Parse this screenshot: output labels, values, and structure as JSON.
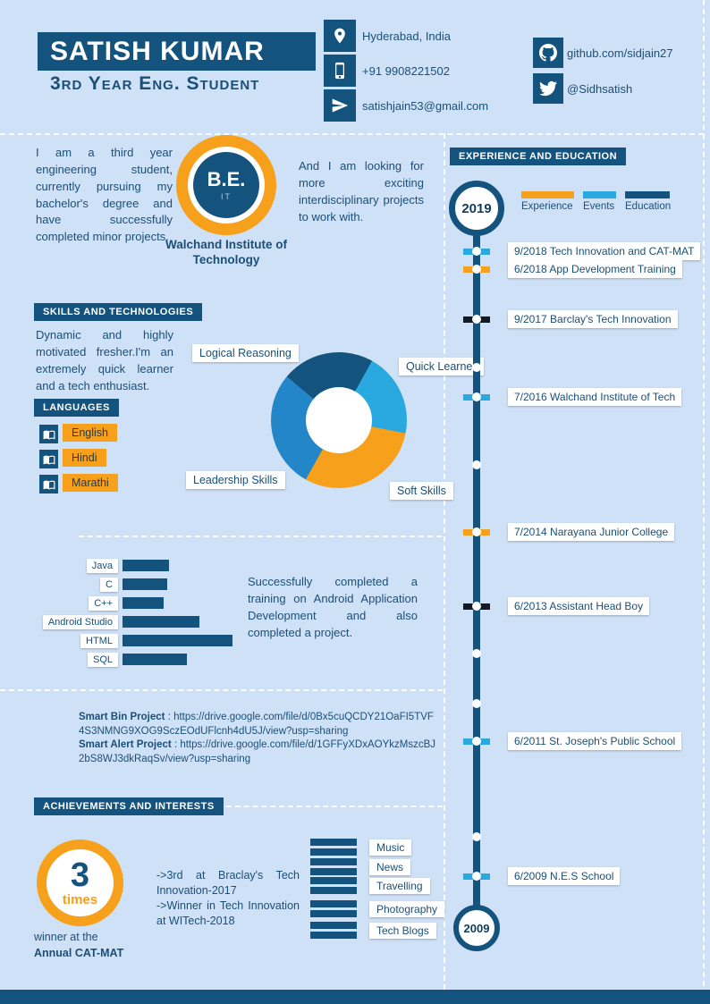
{
  "theme": {
    "background": "#cfe1f6",
    "dark_blue": "#14537d",
    "orange": "#f6a01b",
    "light_blue": "#2aa9e0",
    "near_black": "#101b26",
    "text": "#1b4f76"
  },
  "header": {
    "name": "SATISH KUMAR",
    "subtitle": "3rd Year Eng. Student",
    "contacts": [
      {
        "icon": "location-icon",
        "text": "Hyderabad, India"
      },
      {
        "icon": "phone-icon",
        "text": "+91 9908221502"
      },
      {
        "icon": "send-icon",
        "text": "satishjain53@gmail.com"
      }
    ],
    "socials": [
      {
        "icon": "github-icon",
        "text": "github.com/sidjain27"
      },
      {
        "icon": "twitter-icon",
        "text": "@Sidhsatish"
      }
    ]
  },
  "about": {
    "intro": "I am a third year engineering student, currently pursuing my bachelor's degree and have successfully completed minor projects.",
    "degree": "B.E.",
    "degree_field": "IT",
    "institute": "Walchand Institute of Technology",
    "looking": "And I am looking for more exciting interdisciplinary projects to work with."
  },
  "skills": {
    "title": "SKILLS AND TECHNOLOGIES",
    "blurb": "Dynamic and highly motivated fresher.I'm an extremely quick learner and a tech enthusiast."
  },
  "languages": {
    "title": "LANGUAGES",
    "items": [
      {
        "label": "English"
      },
      {
        "label": "Hindi"
      },
      {
        "label": "Marathi"
      }
    ]
  },
  "chart_data": [
    {
      "type": "pie",
      "labels": [
        "Logical Reasoning",
        "Quick Learner",
        "Soft Skills",
        "Leadership Skills"
      ],
      "values": [
        22,
        20,
        30,
        28
      ],
      "colors": [
        "#14537d",
        "#2aa9e0",
        "#f6a01b",
        "#2386c8"
      ],
      "hole": 0.48,
      "start_angle_deg": -50,
      "legend_position": "around"
    },
    {
      "type": "bar",
      "orientation": "horizontal",
      "categories": [
        "Java",
        "C",
        "C++",
        "Android Studio",
        "HTML",
        "SQL"
      ],
      "values": [
        52,
        50,
        46,
        86,
        123,
        72
      ],
      "unit": "px",
      "color": "#14537d",
      "grid": false
    }
  ],
  "training": {
    "note": "Successfully completed a training on Android Application Development and also completed a project."
  },
  "projects": {
    "items": [
      {
        "name": "Smart Bin Project",
        "url": "https://drive.google.com/file/d/0Bx5cuQCDY21OaFI5TVF4S3NMNG9XOG9SczEOdUFlcnh4dU5J/view?usp=sharing"
      },
      {
        "name": "Smart Alert Project",
        "url": "https://drive.google.com/file/d/1GFFyXDxAOYkzMszcBJ2bS8WJ3dkRaqSv/view?usp=sharing"
      }
    ]
  },
  "achievements": {
    "title": "ACHIEVEMENTS AND INTERESTS",
    "badge_number": "3",
    "badge_label": "times",
    "caption_line1": "winner at the",
    "caption_line2": "Annual CAT-MAT",
    "notes": [
      {
        "text": "->3rd at Braclay's Tech Innovation-2017"
      },
      {
        "text": "->Winner in Tech Innovation at WITech-2018"
      }
    ]
  },
  "interests": {
    "items": [
      {
        "label": "Music"
      },
      {
        "label": "News"
      },
      {
        "label": "Travelling"
      },
      {
        "label": "Photography"
      },
      {
        "label": "Tech Blogs"
      }
    ]
  },
  "timeline": {
    "title": "EXPERIENCE AND EDUCATION",
    "top_year": "2019",
    "bottom_year": "2009",
    "legend": [
      {
        "label": "Experience",
        "color": "#f6a01b"
      },
      {
        "label": "Events",
        "color": "#2aa9e0"
      },
      {
        "label": "Education",
        "color": "#14537d"
      }
    ],
    "items": [
      {
        "date": "9/2018",
        "label": "Tech Innovation and CAT-MAT",
        "color": "#2aa9e0"
      },
      {
        "date": "6/2018",
        "label": "App Development Training",
        "color": "#f6a01b"
      },
      {
        "date": "9/2017",
        "label": "Barclay's Tech Innovation",
        "color": "#101b26"
      },
      {
        "date": "7/2016",
        "label": "Walchand Institute of Tech",
        "color": "#2aa9e0"
      },
      {
        "date": "7/2014",
        "label": "Narayana Junior College",
        "color": "#f6a01b"
      },
      {
        "date": "6/2013",
        "label": "Assistant Head Boy",
        "color": "#101b26"
      },
      {
        "date": "6/2011",
        "label": "St. Joseph's Public School",
        "color": "#2aa9e0"
      },
      {
        "date": "6/2009",
        "label": "N.E.S School",
        "color": "#2aa9e0"
      }
    ]
  }
}
